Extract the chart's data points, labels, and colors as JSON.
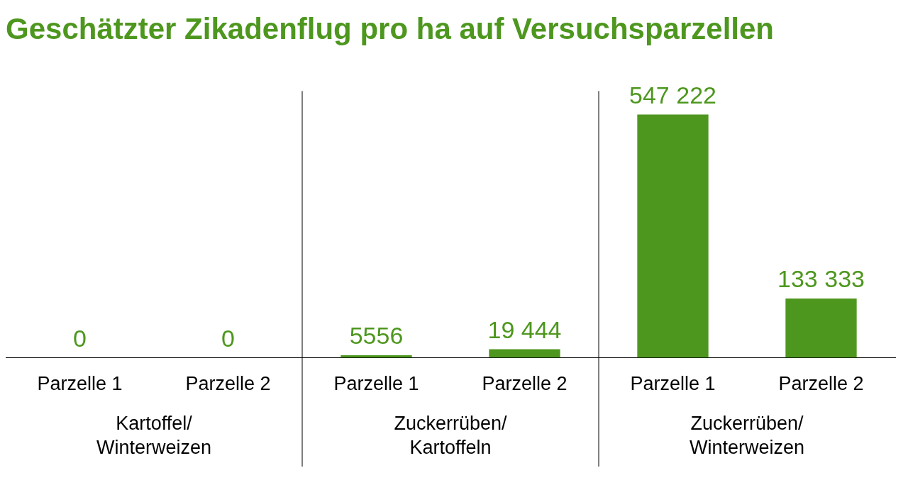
{
  "chart_data": {
    "type": "bar",
    "title": "Geschätzter Zikadenflug pro ha auf Versuchsparzellen",
    "categories": [
      "Parzelle 1",
      "Parzelle 2",
      "Parzelle 1",
      "Parzelle 2",
      "Parzelle 1",
      "Parzelle 2"
    ],
    "values": [
      0,
      0,
      5556,
      19444,
      547222,
      133333
    ],
    "value_labels": [
      "0",
      "0",
      "5556",
      "19 444",
      "547 222",
      "133 333"
    ],
    "color": "#4e971f",
    "annotations": [
      "Kartoffel/ Winterweizen",
      "Zuckerrüben/ Kartoffeln",
      "Zuckerrüben/ Winterweizen"
    ],
    "grid": false,
    "legend": false
  }
}
